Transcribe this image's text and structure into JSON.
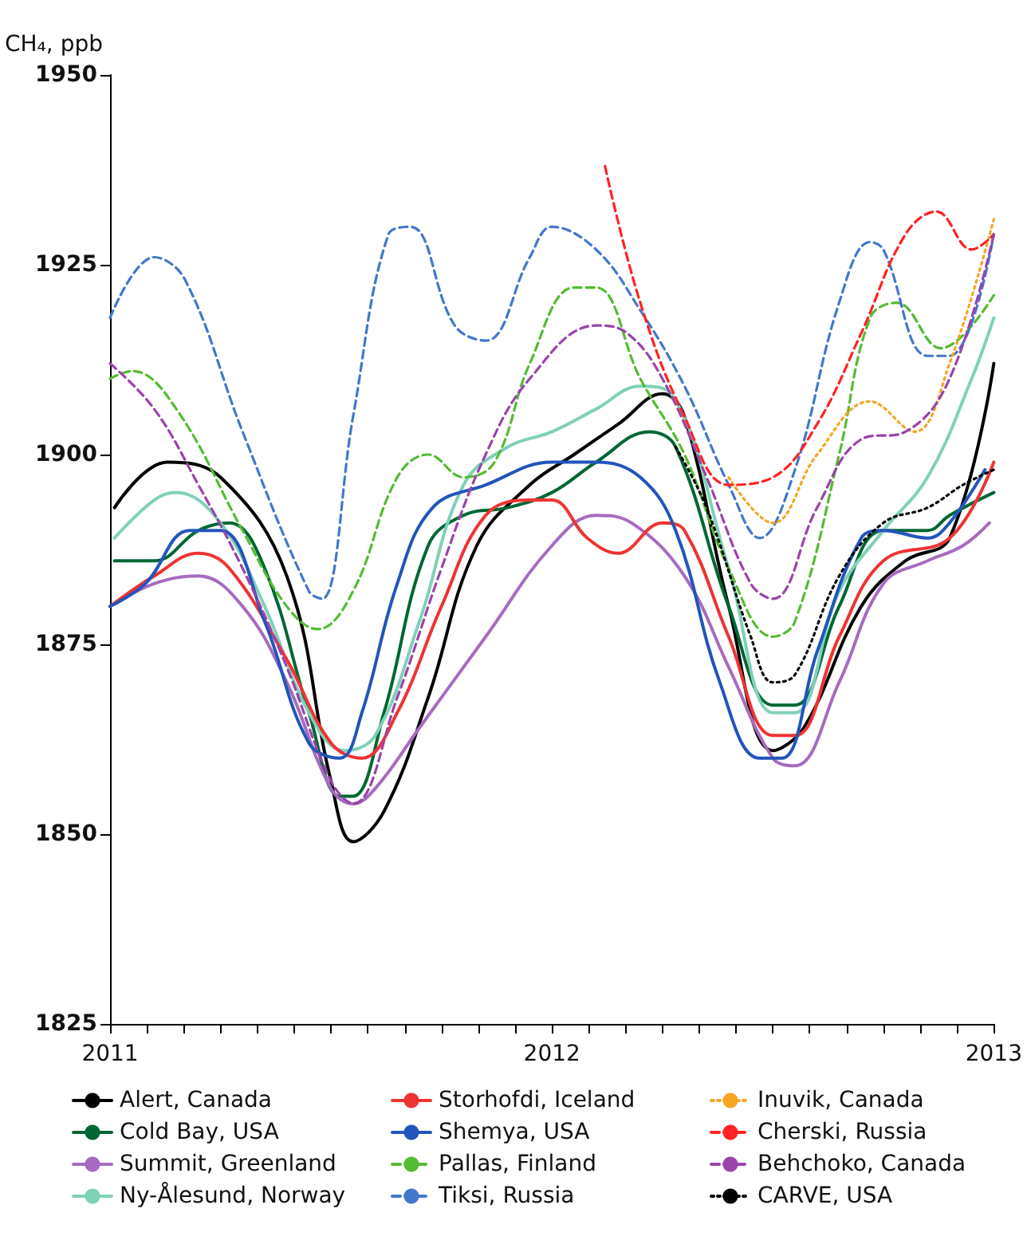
{
  "chart_data": {
    "type": "line",
    "ylabel": "CH₄, ppb",
    "xlim": [
      2011,
      2013
    ],
    "ylim": [
      1825,
      1950
    ],
    "yticks": [
      1825,
      1850,
      1875,
      1900,
      1925,
      1950
    ],
    "xticks": [
      2011,
      {
        "value": 2011.083,
        "label": null
      },
      {
        "value": 2011.167,
        "label": null
      },
      {
        "value": 2011.25,
        "label": null
      },
      {
        "value": 2011.333,
        "label": null
      },
      {
        "value": 2011.417,
        "label": null
      },
      {
        "value": 2011.5,
        "label": null
      },
      {
        "value": 2011.583,
        "label": null
      },
      {
        "value": 2011.667,
        "label": null
      },
      {
        "value": 2011.75,
        "label": null
      },
      {
        "value": 2011.833,
        "label": null
      },
      {
        "value": 2011.917,
        "label": null
      },
      2012,
      {
        "value": 2012.083,
        "label": null
      },
      {
        "value": 2012.167,
        "label": null
      },
      {
        "value": 2012.25,
        "label": null
      },
      {
        "value": 2012.333,
        "label": null
      },
      {
        "value": 2012.417,
        "label": null
      },
      {
        "value": 2012.5,
        "label": null
      },
      {
        "value": 2012.583,
        "label": null
      },
      {
        "value": 2012.667,
        "label": null
      },
      {
        "value": 2012.75,
        "label": null
      },
      {
        "value": 2012.833,
        "label": null
      },
      {
        "value": 2012.917,
        "label": null
      },
      2013
    ],
    "grid": false,
    "legend": "bottom",
    "marker": "none",
    "series": [
      {
        "name": "Alert, Canada",
        "color": "#000000",
        "line_style": "solid",
        "x": [
          2011.01,
          2011.13,
          2011.25,
          2011.4,
          2011.5,
          2011.55,
          2011.62,
          2011.72,
          2011.83,
          2011.95,
          2012.05,
          2012.15,
          2012.25,
          2012.3,
          2012.4,
          2012.5,
          2012.57,
          2012.7,
          2012.8,
          2012.9,
          2013.0
        ],
        "values": [
          1893,
          1899,
          1897,
          1884,
          1857,
          1849,
          1853,
          1868,
          1888,
          1896,
          1900,
          1904,
          1908,
          1905,
          1880,
          1861,
          1864,
          1880,
          1886,
          1889,
          1912
        ]
      },
      {
        "name": "Cold Bay, USA",
        "color": "#006633",
        "line_style": "solid",
        "x": [
          2011.01,
          2011.1,
          2011.2,
          2011.27,
          2011.35,
          2011.45,
          2011.52,
          2011.55,
          2011.62,
          2011.72,
          2011.8,
          2011.9,
          2012.0,
          2012.1,
          2012.22,
          2012.28,
          2012.4,
          2012.5,
          2012.55,
          2012.65,
          2012.75,
          2012.85,
          2012.9,
          2013.0
        ],
        "values": [
          1886,
          1886,
          1890,
          1891,
          1885,
          1866,
          1855,
          1855,
          1866,
          1888,
          1892,
          1893,
          1895,
          1899,
          1903,
          1901,
          1880,
          1867,
          1867,
          1880,
          1890,
          1890,
          1892,
          1895
        ]
      },
      {
        "name": "Summit, Greenland",
        "color": "#a66bbf",
        "line_style": "solid",
        "x": [
          2011.0,
          2011.1,
          2011.2,
          2011.3,
          2011.4,
          2011.5,
          2011.55,
          2011.6,
          2011.7,
          2011.85,
          2012.0,
          2012.1,
          2012.18,
          2012.3,
          2012.4,
          2012.5,
          2012.55,
          2012.65,
          2012.75,
          2012.85,
          2012.93,
          2012.99
        ],
        "values": [
          1880,
          1883,
          1884,
          1880,
          1870,
          1856,
          1854,
          1856,
          1864,
          1876,
          1888,
          1892,
          1891,
          1884,
          1872,
          1860,
          1859,
          1870,
          1883,
          1886,
          1888,
          1891
        ]
      },
      {
        "name": "Ny-Ålesund, Norway",
        "color": "#7fd1b8",
        "line_style": "solid",
        "x": [
          2011.01,
          2011.1,
          2011.15,
          2011.25,
          2011.35,
          2011.45,
          2011.53,
          2011.6,
          2011.7,
          2011.8,
          2011.9,
          2012.0,
          2012.1,
          2012.2,
          2012.27,
          2012.4,
          2012.5,
          2012.55,
          2012.65,
          2012.75,
          2012.85,
          2012.95,
          2013.0
        ],
        "values": [
          1889,
          1894,
          1895,
          1891,
          1880,
          1866,
          1861,
          1863,
          1878,
          1896,
          1901,
          1903,
          1906,
          1909,
          1908,
          1885,
          1866,
          1866,
          1882,
          1890,
          1897,
          1910,
          1918
        ]
      },
      {
        "name": "Storhofdi, Iceland",
        "color": "#ee3333",
        "line_style": "solid",
        "x": [
          2011.0,
          2011.1,
          2011.2,
          2011.27,
          2011.4,
          2011.5,
          2011.57,
          2011.65,
          2011.75,
          2011.85,
          2011.95,
          2012.0,
          2012.08,
          2012.15,
          2012.25,
          2012.3,
          2012.4,
          2012.5,
          2012.55,
          2012.65,
          2012.75,
          2012.9,
          2013.0
        ],
        "values": [
          1880,
          1884,
          1887,
          1885,
          1873,
          1862,
          1860,
          1866,
          1880,
          1892,
          1894,
          1894,
          1889,
          1887,
          1891,
          1890,
          1876,
          1863,
          1863,
          1876,
          1886,
          1889,
          1899
        ]
      },
      {
        "name": "Shemya, USA",
        "color": "#2255bb",
        "line_style": "solid",
        "x": [
          2011.0,
          2011.08,
          2011.18,
          2011.25,
          2011.35,
          2011.45,
          2011.52,
          2011.57,
          2011.65,
          2011.73,
          2011.85,
          2012.0,
          2012.1,
          2012.2,
          2012.28,
          2012.38,
          2012.47,
          2012.52,
          2012.6,
          2012.7,
          2012.75,
          2012.85,
          2012.9,
          2012.98
        ],
        "values": [
          1880,
          1883,
          1890,
          1890,
          1878,
          1862,
          1860,
          1866,
          1883,
          1893,
          1896,
          1899,
          1899,
          1897,
          1890,
          1870,
          1860,
          1860,
          1874,
          1889,
          1890,
          1889,
          1891,
          1898
        ]
      },
      {
        "name": "Pallas, Finland",
        "color": "#55bb33",
        "line_style": "dashed",
        "x": [
          2011.0,
          2011.05,
          2011.15,
          2011.3,
          2011.4,
          2011.47,
          2011.55,
          2011.65,
          2011.72,
          2011.8,
          2011.87,
          2011.95,
          2012.05,
          2012.1,
          2012.2,
          2012.3,
          2012.4,
          2012.5,
          2012.55,
          2012.65,
          2012.72,
          2012.78,
          2012.88,
          2013.0
        ],
        "values": [
          1910,
          1911,
          1906,
          1890,
          1880,
          1877,
          1882,
          1897,
          1900,
          1897,
          1899,
          1912,
          1922,
          1922,
          1910,
          1900,
          1885,
          1876,
          1878,
          1900,
          1918,
          1920,
          1914,
          1921
        ]
      },
      {
        "name": "Tiksi, Russia",
        "color": "#4477cc",
        "line_style": "dashed",
        "x": [
          2011.0,
          2011.1,
          2011.17,
          2011.3,
          2011.45,
          2011.48,
          2011.55,
          2011.63,
          2011.68,
          2011.78,
          2011.85,
          2011.95,
          2012.0,
          2012.1,
          2012.2,
          2012.3,
          2012.4,
          2012.47,
          2012.55,
          2012.65,
          2012.72,
          2012.75,
          2012.85,
          2012.9,
          2013.0
        ],
        "values": [
          1918,
          1926,
          1923,
          1903,
          1882,
          1881,
          1905,
          1929,
          1930,
          1917,
          1915,
          1926,
          1930,
          1927,
          1919,
          1909,
          1896,
          1889,
          1898,
          1920,
          1928,
          1927,
          1913,
          1913,
          1929
        ]
      },
      {
        "name": "Inuvik, Canada",
        "color": "#f5a623",
        "line_style": "dotted",
        "x": [
          2012.4,
          2012.5,
          2012.6,
          2012.72,
          2012.82,
          2012.9,
          2013.0
        ],
        "values": [
          1897,
          1891,
          1900,
          1907,
          1903,
          1912,
          1931
        ]
      },
      {
        "name": "Cherski, Russia",
        "color": "#ff2222",
        "line_style": "dashed",
        "x": [
          2012.12,
          2012.2,
          2012.3,
          2012.4,
          2012.5,
          2012.6,
          2012.7,
          2012.8,
          2012.87,
          2012.95,
          2013.0
        ],
        "values": [
          1938,
          1920,
          1905,
          1896,
          1897,
          1904,
          1916,
          1929,
          1932,
          1927,
          1929
        ]
      },
      {
        "name": "Behchoko, Canada",
        "color": "#9944aa",
        "line_style": "dashed",
        "x": [
          2011.0,
          2011.1,
          2011.2,
          2011.3,
          2011.4,
          2011.5,
          2011.55,
          2011.65,
          2011.75,
          2011.85,
          2011.95,
          2012.1,
          2012.17,
          2012.25,
          2012.35,
          2012.45,
          2012.5,
          2012.6,
          2012.7,
          2012.8,
          2012.9,
          2013.0
        ],
        "values": [
          1912,
          1906,
          1896,
          1885,
          1872,
          1857,
          1854,
          1868,
          1885,
          1900,
          1910,
          1917,
          1916,
          1910,
          1897,
          1883,
          1881,
          1893,
          1902,
          1903,
          1910,
          1929
        ]
      },
      {
        "name": "CARVE, USA",
        "color": "#000000",
        "line_style": "dotted",
        "x": [
          2012.28,
          2012.35,
          2012.45,
          2012.5,
          2012.55,
          2012.65,
          2012.75,
          2012.85,
          2012.93,
          2013.0
        ],
        "values": [
          1901,
          1893,
          1876,
          1870,
          1871,
          1884,
          1891,
          1893,
          1896,
          1898
        ]
      }
    ]
  }
}
